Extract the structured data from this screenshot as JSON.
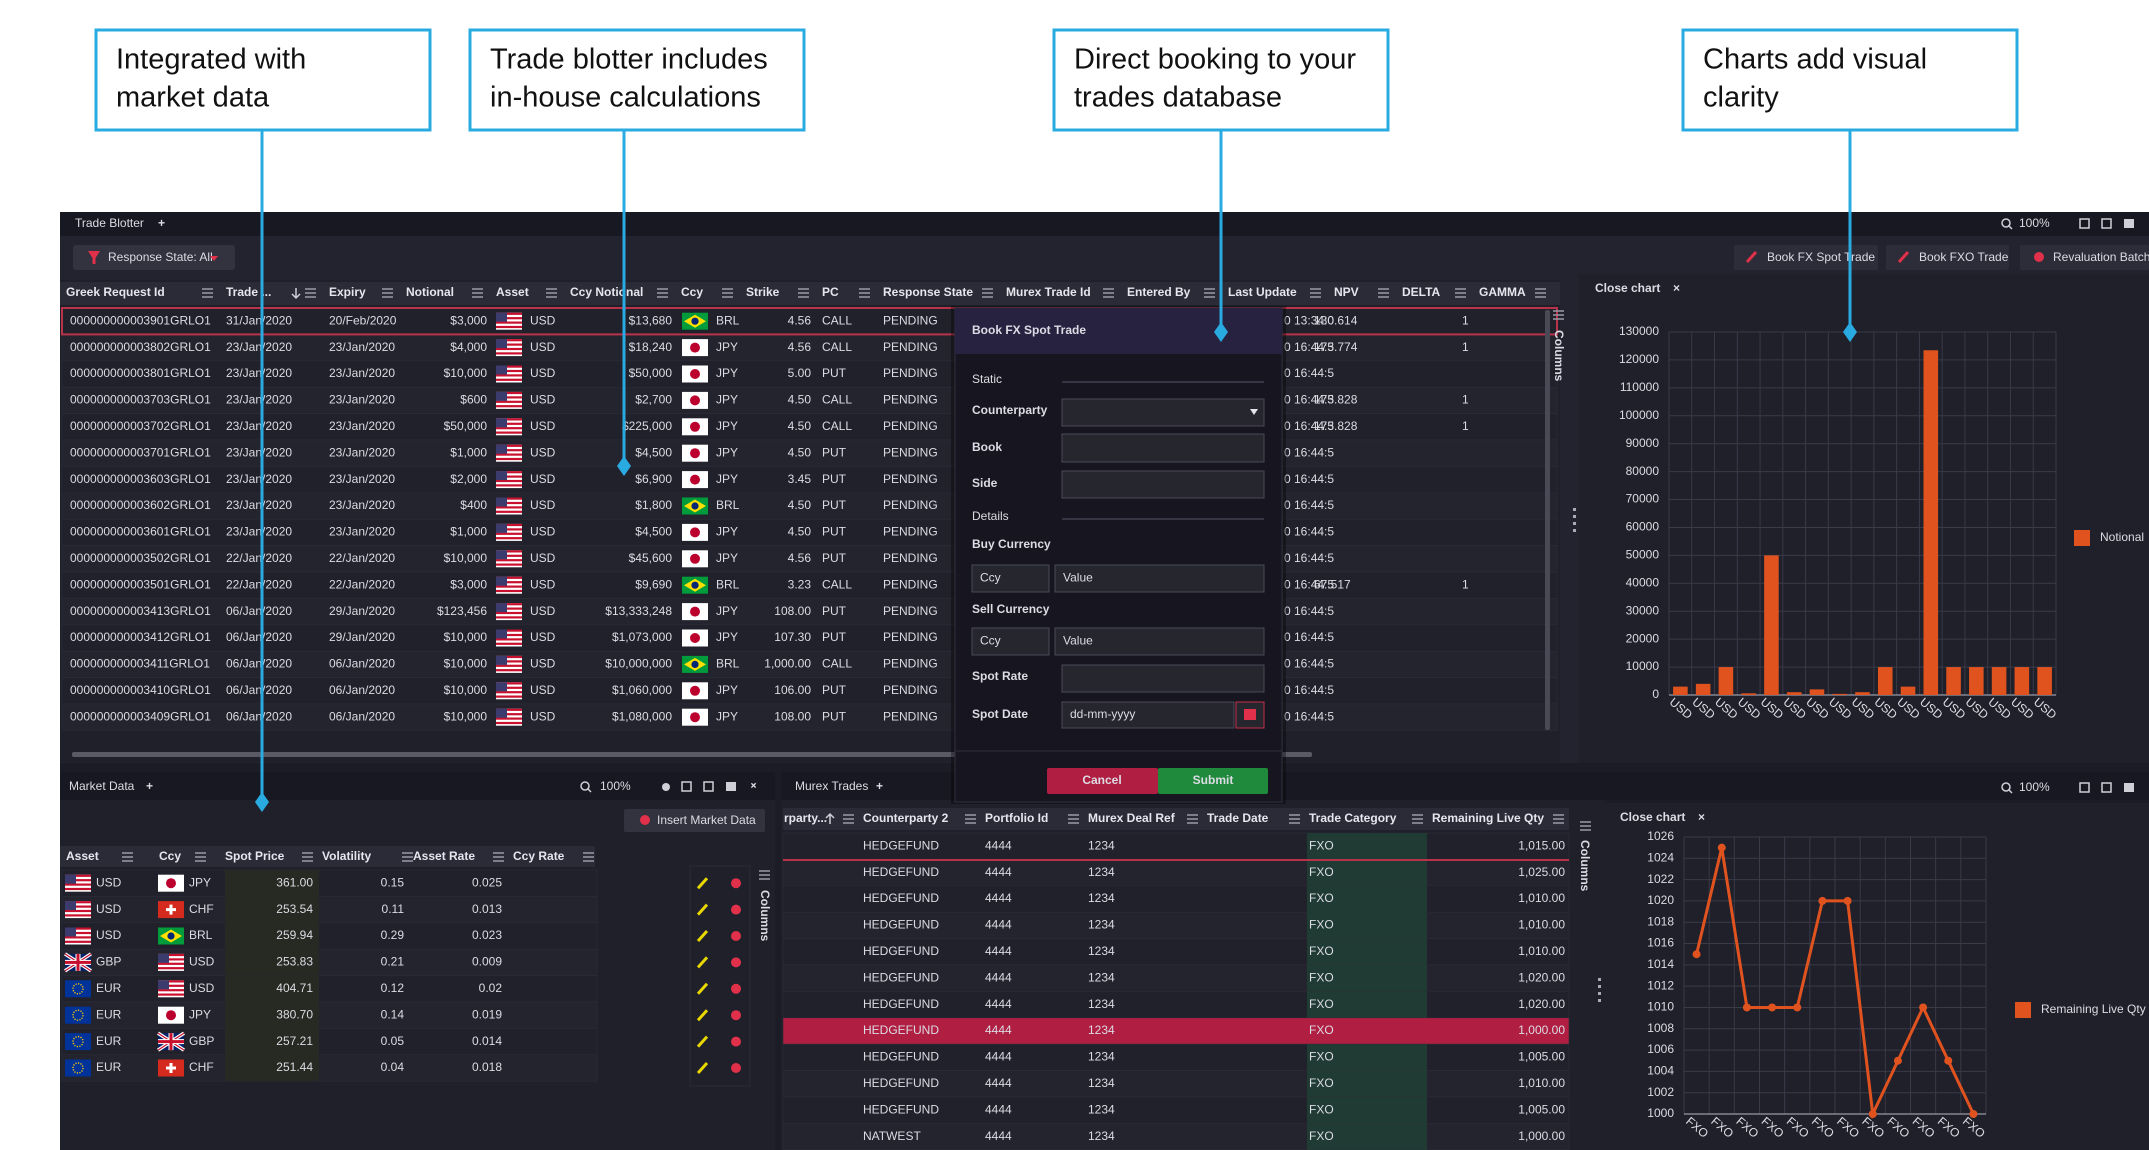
{
  "callouts": [
    {
      "lines": [
        "Integrated with",
        "market data"
      ]
    },
    {
      "lines": [
        "Trade blotter includes",
        "in-house calculations"
      ]
    },
    {
      "lines": [
        "Direct booking to your",
        "trades database"
      ]
    },
    {
      "lines": [
        "Charts add visual",
        "clarity"
      ]
    }
  ],
  "blotter": {
    "title": "Trade Blotter",
    "add": "+",
    "filter": "Response State: All",
    "zoom": "100%",
    "actions": [
      "Book FX Spot Trade",
      "Book FXO Trade",
      "Revaluation Batch"
    ],
    "side_tab": "Columns",
    "columns": [
      "Greek Request Id",
      "Trade ...",
      "Expiry",
      "Notional",
      "Asset",
      "Ccy Notional",
      "Ccy",
      "Strike",
      "PC",
      "Response State",
      "Murex Trade Id",
      "Entered By",
      "Last Update",
      "NPV",
      "DELTA",
      "GAMMA"
    ],
    "rows": [
      [
        "000000000003901GRLO1",
        "31/Jan/2020",
        "20/Feb/2020",
        "$3,000",
        "USD",
        "$13,680",
        "BRL",
        "4.56",
        "CALL",
        "PENDING",
        null,
        null,
        "0 13:34:0",
        "130.614",
        "1",
        null
      ],
      [
        "000000000003802GRLO1",
        "23/Jan/2020",
        "23/Jan/2020",
        "$4,000",
        "USD",
        "$18,240",
        "JPY",
        "4.56",
        "CALL",
        "PENDING",
        null,
        null,
        "0 16:44:5",
        "173.774",
        "1",
        null
      ],
      [
        "000000000003801GRLO1",
        "23/Jan/2020",
        "23/Jan/2020",
        "$10,000",
        "USD",
        "$50,000",
        "JPY",
        "5.00",
        "PUT",
        "PENDING",
        null,
        null,
        "0 16:44:5",
        null,
        null,
        null
      ],
      [
        "000000000003703GRLO1",
        "23/Jan/2020",
        "23/Jan/2020",
        "$600",
        "USD",
        "$2,700",
        "JPY",
        "4.50",
        "CALL",
        "PENDING",
        null,
        null,
        "0 16:44:5",
        "173.828",
        "1",
        null
      ],
      [
        "000000000003702GRLO1",
        "23/Jan/2020",
        "23/Jan/2020",
        "$50,000",
        "USD",
        "$225,000",
        "JPY",
        "4.50",
        "CALL",
        "PENDING",
        null,
        null,
        "0 16:44:5",
        "173.828",
        "1",
        null
      ],
      [
        "000000000003701GRLO1",
        "23/Jan/2020",
        "23/Jan/2020",
        "$1,000",
        "USD",
        "$4,500",
        "JPY",
        "4.50",
        "PUT",
        "PENDING",
        null,
        null,
        "0 16:44:5",
        null,
        null,
        null
      ],
      [
        "000000000003603GRLO1",
        "23/Jan/2020",
        "23/Jan/2020",
        "$2,000",
        "USD",
        "$6,900",
        "JPY",
        "3.45",
        "PUT",
        "PENDING",
        null,
        null,
        "0 16:44:5",
        null,
        null,
        null
      ],
      [
        "000000000003602GRLO1",
        "23/Jan/2020",
        "23/Jan/2020",
        "$400",
        "USD",
        "$1,800",
        "BRL",
        "4.50",
        "PUT",
        "PENDING",
        null,
        null,
        "0 16:44:5",
        null,
        null,
        null
      ],
      [
        "000000000003601GRLO1",
        "23/Jan/2020",
        "23/Jan/2020",
        "$1,000",
        "USD",
        "$4,500",
        "JPY",
        "4.50",
        "PUT",
        "PENDING",
        null,
        null,
        "0 16:44:5",
        null,
        null,
        null
      ],
      [
        "000000000003502GRLO1",
        "22/Jan/2020",
        "22/Jan/2020",
        "$10,000",
        "USD",
        "$45,600",
        "JPY",
        "4.56",
        "PUT",
        "PENDING",
        null,
        null,
        "0 16:44:5",
        null,
        null,
        null
      ],
      [
        "000000000003501GRLO1",
        "22/Jan/2020",
        "22/Jan/2020",
        "$3,000",
        "USD",
        "$9,690",
        "BRL",
        "3.23",
        "CALL",
        "PENDING",
        null,
        null,
        "0 16:44:5",
        "67.517",
        "1",
        null
      ],
      [
        "000000000003413GRLO1",
        "06/Jan/2020",
        "29/Jan/2020",
        "$123,456",
        "USD",
        "$13,333,248",
        "JPY",
        "108.00",
        "PUT",
        "PENDING",
        null,
        null,
        "0 16:44:5",
        null,
        null,
        null
      ],
      [
        "000000000003412GRLO1",
        "06/Jan/2020",
        "29/Jan/2020",
        "$10,000",
        "USD",
        "$1,073,000",
        "JPY",
        "107.30",
        "PUT",
        "PENDING",
        null,
        null,
        "0 16:44:5",
        null,
        null,
        null
      ],
      [
        "000000000003411GRLO1",
        "06/Jan/2020",
        "06/Jan/2020",
        "$10,000",
        "USD",
        "$10,000,000",
        "BRL",
        "1,000.00",
        "CALL",
        "PENDING",
        null,
        null,
        "0 16:44:5",
        null,
        null,
        null
      ],
      [
        "000000000003410GRLO1",
        "06/Jan/2020",
        "06/Jan/2020",
        "$10,000",
        "USD",
        "$1,060,000",
        "JPY",
        "106.00",
        "PUT",
        "PENDING",
        null,
        null,
        "0 16:44:5",
        null,
        null,
        null
      ],
      [
        "000000000003409GRLO1",
        "06/Jan/2020",
        "06/Jan/2020",
        "$10,000",
        "USD",
        "$1,080,000",
        "JPY",
        "108.00",
        "PUT",
        "PENDING",
        null,
        null,
        "0 16:44:5",
        null,
        null,
        null
      ]
    ]
  },
  "chart_data": [
    {
      "type": "bar",
      "close": "Close chart",
      "close_icon": "×",
      "categories": [
        "USD",
        "USD",
        "USD",
        "USD",
        "USD",
        "USD",
        "USD",
        "USD",
        "USD",
        "USD",
        "USD",
        "USD",
        "USD",
        "USD",
        "USD",
        "USD",
        "USD"
      ],
      "series": [
        {
          "name": "Notional",
          "color": "#e0531f",
          "values": [
            3000,
            4000,
            10000,
            600,
            50000,
            1000,
            2000,
            400,
            1000,
            10000,
            3000,
            123456,
            10000,
            10000,
            10000,
            10000,
            10000
          ]
        }
      ],
      "ylim": [
        0,
        130000
      ],
      "yticks": [
        0,
        10000,
        20000,
        30000,
        40000,
        50000,
        60000,
        70000,
        80000,
        90000,
        100000,
        110000,
        120000,
        130000
      ],
      "grid": true,
      "legend": "right"
    },
    {
      "type": "line",
      "close": "Close chart",
      "close_icon": "×",
      "categories": [
        "FXO",
        "FXO",
        "FXO",
        "FXO",
        "FXO",
        "FXO",
        "FXO",
        "FXO",
        "FXO",
        "FXO",
        "FXO",
        "FXO"
      ],
      "series": [
        {
          "name": "Remaining Live Qty",
          "color": "#e0531f",
          "values": [
            1015,
            1025,
            1010,
            1010,
            1010,
            1020,
            1020,
            1000,
            1005,
            1010,
            1005,
            1000
          ]
        }
      ],
      "ylim": [
        1000,
        1026
      ],
      "yticks": [
        1000,
        1002,
        1004,
        1006,
        1008,
        1010,
        1012,
        1014,
        1016,
        1018,
        1020,
        1022,
        1024,
        1026
      ],
      "grid": true,
      "legend": "right"
    }
  ],
  "market_data": {
    "title": "Market Data",
    "add": "+",
    "zoom": "100%",
    "insert": "Insert Market Data",
    "side_tab": "Columns",
    "columns": [
      "Asset",
      "Ccy",
      "Spot Price",
      "Volatility",
      "Asset Rate",
      "Ccy Rate"
    ],
    "rows": [
      [
        "USD",
        "JPY",
        "361.00",
        "0.15",
        "0.025"
      ],
      [
        "USD",
        "CHF",
        "253.54",
        "0.11",
        "0.013"
      ],
      [
        "USD",
        "BRL",
        "259.94",
        "0.29",
        "0.023"
      ],
      [
        "GBP",
        "USD",
        "253.83",
        "0.21",
        "0.009"
      ],
      [
        "EUR",
        "USD",
        "404.71",
        "0.12",
        "0.02"
      ],
      [
        "EUR",
        "JPY",
        "380.70",
        "0.14",
        "0.019"
      ],
      [
        "EUR",
        "GBP",
        "257.21",
        "0.05",
        "0.014"
      ],
      [
        "EUR",
        "CHF",
        "251.44",
        "0.04",
        "0.018"
      ]
    ]
  },
  "murex_trades": {
    "title": "Murex Trades",
    "add": "+",
    "zoom": "100%",
    "side_tab": "Columns",
    "columns": [
      "rparty...",
      "Counterparty 2",
      "Portfolio Id",
      "Murex Deal Ref",
      "Trade Date",
      "Trade Category",
      "Remaining Live Qty"
    ],
    "highlighted_row": 7,
    "rows": [
      [
        "HEDGEFUND",
        "4444",
        "1234",
        "FXO",
        "1,015.00"
      ],
      [
        "HEDGEFUND",
        "4444",
        "1234",
        "FXO",
        "1,025.00"
      ],
      [
        "HEDGEFUND",
        "4444",
        "1234",
        "FXO",
        "1,010.00"
      ],
      [
        "HEDGEFUND",
        "4444",
        "1234",
        "FXO",
        "1,010.00"
      ],
      [
        "HEDGEFUND",
        "4444",
        "1234",
        "FXO",
        "1,010.00"
      ],
      [
        "HEDGEFUND",
        "4444",
        "1234",
        "FXO",
        "1,020.00"
      ],
      [
        "HEDGEFUND",
        "4444",
        "1234",
        "FXO",
        "1,020.00"
      ],
      [
        "HEDGEFUND",
        "4444",
        "1234",
        "FXO",
        "1,000.00"
      ],
      [
        "HEDGEFUND",
        "4444",
        "1234",
        "FXO",
        "1,005.00"
      ],
      [
        "HEDGEFUND",
        "4444",
        "1234",
        "FXO",
        "1,010.00"
      ],
      [
        "HEDGEFUND",
        "4444",
        "1234",
        "FXO",
        "1,005.00"
      ],
      [
        "NATWEST",
        "4444",
        "1234",
        "FXO",
        "1,000.00"
      ]
    ]
  },
  "modal": {
    "title": "Book FX Spot Trade",
    "static": "Static",
    "counterparty": "Counterparty",
    "book": "Book",
    "side": "Side",
    "details": "Details",
    "buy_currency": "Buy Currency",
    "buy_ccy_placeholder": "Ccy",
    "buy_value_placeholder": "Value",
    "sell_currency": "Sell Currency",
    "sell_ccy_placeholder": "Ccy",
    "sell_value_placeholder": "Value",
    "spot_rate": "Spot Rate",
    "spot_date": "Spot Date",
    "date_placeholder": "dd-mm-yyyy",
    "cancel": "Cancel",
    "submit": "Submit"
  }
}
